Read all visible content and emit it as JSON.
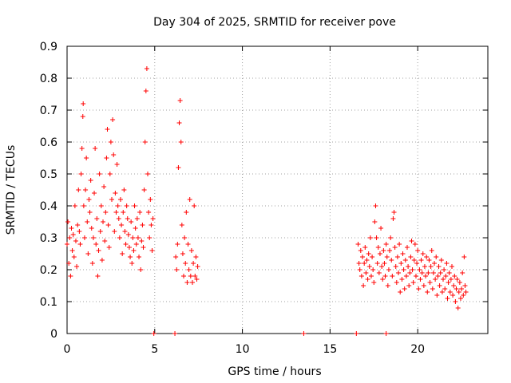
{
  "chart_data": {
    "type": "scatter",
    "title": "Day 304 of 2025, SRMTID for receiver pove",
    "xlabel": "GPS time / hours",
    "ylabel": "SRMTID / TECUs",
    "xlim": [
      0,
      24
    ],
    "ylim": [
      0,
      0.9
    ],
    "x_ticks": [
      0,
      5,
      10,
      15,
      20
    ],
    "y_ticks": [
      0,
      0.1,
      0.2,
      0.3,
      0.4,
      0.5,
      0.6,
      0.7,
      0.8,
      0.9
    ],
    "x_tick_labels": [
      "0",
      "5",
      "10",
      "15",
      "20"
    ],
    "y_tick_labels": [
      "0",
      "0.1",
      "0.2",
      "0.3",
      "0.4",
      "0.5",
      "0.6",
      "0.7",
      "0.8",
      "0.9"
    ],
    "grid": true,
    "marker": "+",
    "color": "#ff0000",
    "series": [
      {
        "name": "SRMTID",
        "points": [
          [
            0.0,
            0.28
          ],
          [
            0.05,
            0.35
          ],
          [
            0.1,
            0.22
          ],
          [
            0.15,
            0.3
          ],
          [
            0.2,
            0.18
          ],
          [
            0.25,
            0.33
          ],
          [
            0.3,
            0.26
          ],
          [
            0.35,
            0.31
          ],
          [
            0.4,
            0.24
          ],
          [
            0.45,
            0.4
          ],
          [
            0.5,
            0.29
          ],
          [
            0.55,
            0.21
          ],
          [
            0.6,
            0.34
          ],
          [
            0.65,
            0.45
          ],
          [
            0.7,
            0.32
          ],
          [
            0.75,
            0.28
          ],
          [
            0.8,
            0.5
          ],
          [
            0.85,
            0.58
          ],
          [
            0.9,
            0.68
          ],
          [
            0.92,
            0.72
          ],
          [
            0.95,
            0.4
          ],
          [
            1.0,
            0.3
          ],
          [
            1.05,
            0.45
          ],
          [
            1.1,
            0.55
          ],
          [
            1.15,
            0.35
          ],
          [
            1.2,
            0.25
          ],
          [
            1.25,
            0.42
          ],
          [
            1.3,
            0.38
          ],
          [
            1.35,
            0.48
          ],
          [
            1.4,
            0.33
          ],
          [
            1.45,
            0.22
          ],
          [
            1.5,
            0.3
          ],
          [
            1.55,
            0.44
          ],
          [
            1.6,
            0.58
          ],
          [
            1.65,
            0.28
          ],
          [
            1.7,
            0.36
          ],
          [
            1.75,
            0.18
          ],
          [
            1.8,
            0.26
          ],
          [
            1.85,
            0.5
          ],
          [
            1.9,
            0.32
          ],
          [
            1.95,
            0.4
          ],
          [
            2.0,
            0.23
          ],
          [
            2.05,
            0.35
          ],
          [
            2.1,
            0.46
          ],
          [
            2.15,
            0.29
          ],
          [
            2.2,
            0.38
          ],
          [
            2.25,
            0.55
          ],
          [
            2.3,
            0.64
          ],
          [
            2.35,
            0.34
          ],
          [
            2.4,
            0.27
          ],
          [
            2.45,
            0.5
          ],
          [
            2.5,
            0.6
          ],
          [
            2.55,
            0.42
          ],
          [
            2.6,
            0.67
          ],
          [
            2.65,
            0.56
          ],
          [
            2.7,
            0.32
          ],
          [
            2.75,
            0.44
          ],
          [
            2.8,
            0.38
          ],
          [
            2.85,
            0.53
          ],
          [
            2.9,
            0.4
          ],
          [
            2.95,
            0.36
          ],
          [
            3.0,
            0.3
          ],
          [
            3.05,
            0.42
          ],
          [
            3.1,
            0.34
          ],
          [
            3.15,
            0.25
          ],
          [
            3.2,
            0.38
          ],
          [
            3.25,
            0.45
          ],
          [
            3.3,
            0.32
          ],
          [
            3.35,
            0.28
          ],
          [
            3.4,
            0.4
          ],
          [
            3.45,
            0.36
          ],
          [
            3.5,
            0.31
          ],
          [
            3.55,
            0.27
          ],
          [
            3.6,
            0.24
          ],
          [
            3.65,
            0.35
          ],
          [
            3.7,
            0.22
          ],
          [
            3.75,
            0.3
          ],
          [
            3.8,
            0.26
          ],
          [
            3.85,
            0.4
          ],
          [
            3.9,
            0.33
          ],
          [
            3.95,
            0.28
          ],
          [
            4.0,
            0.36
          ],
          [
            4.05,
            0.3
          ],
          [
            4.1,
            0.24
          ],
          [
            4.15,
            0.38
          ],
          [
            4.2,
            0.2
          ],
          [
            4.25,
            0.29
          ],
          [
            4.3,
            0.34
          ],
          [
            4.35,
            0.27
          ],
          [
            4.4,
            0.45
          ],
          [
            4.45,
            0.6
          ],
          [
            4.5,
            0.76
          ],
          [
            4.55,
            0.83
          ],
          [
            4.6,
            0.5
          ],
          [
            4.65,
            0.38
          ],
          [
            4.7,
            0.3
          ],
          [
            4.75,
            0.42
          ],
          [
            4.8,
            0.34
          ],
          [
            4.85,
            0.26
          ],
          [
            4.9,
            0.36
          ],
          [
            6.2,
            0.24
          ],
          [
            6.25,
            0.2
          ],
          [
            6.3,
            0.28
          ],
          [
            6.35,
            0.52
          ],
          [
            6.4,
            0.66
          ],
          [
            6.45,
            0.73
          ],
          [
            6.5,
            0.6
          ],
          [
            6.55,
            0.34
          ],
          [
            6.6,
            0.25
          ],
          [
            6.65,
            0.18
          ],
          [
            6.7,
            0.3
          ],
          [
            6.75,
            0.22
          ],
          [
            6.8,
            0.38
          ],
          [
            6.85,
            0.16
          ],
          [
            6.9,
            0.28
          ],
          [
            6.95,
            0.2
          ],
          [
            7.0,
            0.42
          ],
          [
            7.05,
            0.18
          ],
          [
            7.1,
            0.26
          ],
          [
            7.15,
            0.16
          ],
          [
            7.2,
            0.22
          ],
          [
            7.25,
            0.4
          ],
          [
            7.3,
            0.18
          ],
          [
            7.35,
            0.24
          ],
          [
            7.4,
            0.17
          ],
          [
            7.45,
            0.21
          ],
          [
            16.6,
            0.28
          ],
          [
            16.65,
            0.22
          ],
          [
            16.7,
            0.2
          ],
          [
            16.75,
            0.26
          ],
          [
            16.8,
            0.18
          ],
          [
            16.85,
            0.24
          ],
          [
            16.9,
            0.15
          ],
          [
            16.95,
            0.22
          ],
          [
            17.0,
            0.27
          ],
          [
            17.05,
            0.19
          ],
          [
            17.1,
            0.23
          ],
          [
            17.15,
            0.17
          ],
          [
            17.2,
            0.25
          ],
          [
            17.25,
            0.21
          ],
          [
            17.3,
            0.3
          ],
          [
            17.35,
            0.18
          ],
          [
            17.4,
            0.24
          ],
          [
            17.45,
            0.2
          ],
          [
            17.5,
            0.16
          ],
          [
            17.55,
            0.35
          ],
          [
            17.6,
            0.4
          ],
          [
            17.65,
            0.3
          ],
          [
            17.7,
            0.22
          ],
          [
            17.75,
            0.27
          ],
          [
            17.8,
            0.19
          ],
          [
            17.85,
            0.25
          ],
          [
            17.9,
            0.33
          ],
          [
            17.95,
            0.21
          ],
          [
            18.0,
            0.17
          ],
          [
            18.05,
            0.26
          ],
          [
            18.1,
            0.22
          ],
          [
            18.15,
            0.18
          ],
          [
            18.2,
            0.28
          ],
          [
            18.25,
            0.24
          ],
          [
            18.3,
            0.15
          ],
          [
            18.35,
            0.2
          ],
          [
            18.4,
            0.26
          ],
          [
            18.45,
            0.3
          ],
          [
            18.5,
            0.23
          ],
          [
            18.55,
            0.18
          ],
          [
            18.6,
            0.36
          ],
          [
            18.65,
            0.38
          ],
          [
            18.7,
            0.27
          ],
          [
            18.75,
            0.21
          ],
          [
            18.8,
            0.16
          ],
          [
            18.85,
            0.24
          ],
          [
            18.9,
            0.19
          ],
          [
            18.95,
            0.28
          ],
          [
            19.0,
            0.13
          ],
          [
            19.05,
            0.22
          ],
          [
            19.1,
            0.17
          ],
          [
            19.15,
            0.25
          ],
          [
            19.2,
            0.2
          ],
          [
            19.25,
            0.14
          ],
          [
            19.3,
            0.23
          ],
          [
            19.35,
            0.18
          ],
          [
            19.4,
            0.27
          ],
          [
            19.45,
            0.21
          ],
          [
            19.5,
            0.15
          ],
          [
            19.55,
            0.19
          ],
          [
            19.6,
            0.24
          ],
          [
            19.65,
            0.29
          ],
          [
            19.7,
            0.2
          ],
          [
            19.75,
            0.16
          ],
          [
            19.8,
            0.23
          ],
          [
            19.85,
            0.28
          ],
          [
            19.9,
            0.18
          ],
          [
            19.95,
            0.22
          ],
          [
            20.0,
            0.26
          ],
          [
            20.05,
            0.14
          ],
          [
            20.1,
            0.2
          ],
          [
            20.15,
            0.17
          ],
          [
            20.2,
            0.23
          ],
          [
            20.25,
            0.19
          ],
          [
            20.3,
            0.25
          ],
          [
            20.35,
            0.15
          ],
          [
            20.4,
            0.21
          ],
          [
            20.45,
            0.18
          ],
          [
            20.5,
            0.24
          ],
          [
            20.55,
            0.13
          ],
          [
            20.6,
            0.19
          ],
          [
            20.65,
            0.23
          ],
          [
            20.7,
            0.16
          ],
          [
            20.75,
            0.21
          ],
          [
            20.8,
            0.26
          ],
          [
            20.85,
            0.14
          ],
          [
            20.9,
            0.19
          ],
          [
            20.95,
            0.22
          ],
          [
            21.0,
            0.17
          ],
          [
            21.05,
            0.24
          ],
          [
            21.1,
            0.12
          ],
          [
            21.15,
            0.18
          ],
          [
            21.2,
            0.21
          ],
          [
            21.25,
            0.15
          ],
          [
            21.3,
            0.19
          ],
          [
            21.35,
            0.23
          ],
          [
            21.4,
            0.13
          ],
          [
            21.45,
            0.17
          ],
          [
            21.5,
            0.2
          ],
          [
            21.55,
            0.14
          ],
          [
            21.6,
            0.18
          ],
          [
            21.65,
            0.22
          ],
          [
            21.7,
            0.11
          ],
          [
            21.75,
            0.16
          ],
          [
            21.8,
            0.19
          ],
          [
            21.85,
            0.13
          ],
          [
            21.9,
            0.17
          ],
          [
            21.95,
            0.21
          ],
          [
            22.0,
            0.12
          ],
          [
            22.05,
            0.15
          ],
          [
            22.1,
            0.18
          ],
          [
            22.15,
            0.1
          ],
          [
            22.2,
            0.14
          ],
          [
            22.25,
            0.17
          ],
          [
            22.3,
            0.08
          ],
          [
            22.35,
            0.13
          ],
          [
            22.4,
            0.16
          ],
          [
            22.45,
            0.11
          ],
          [
            22.5,
            0.14
          ],
          [
            22.55,
            0.19
          ],
          [
            22.6,
            0.12
          ],
          [
            22.65,
            0.24
          ],
          [
            22.7,
            0.15
          ],
          [
            22.75,
            0.13
          ],
          [
            4.95,
            0.0
          ],
          [
            6.15,
            0.0
          ],
          [
            13.5,
            0.0
          ],
          [
            16.5,
            0.0
          ],
          [
            18.2,
            0.0
          ]
        ]
      }
    ]
  }
}
